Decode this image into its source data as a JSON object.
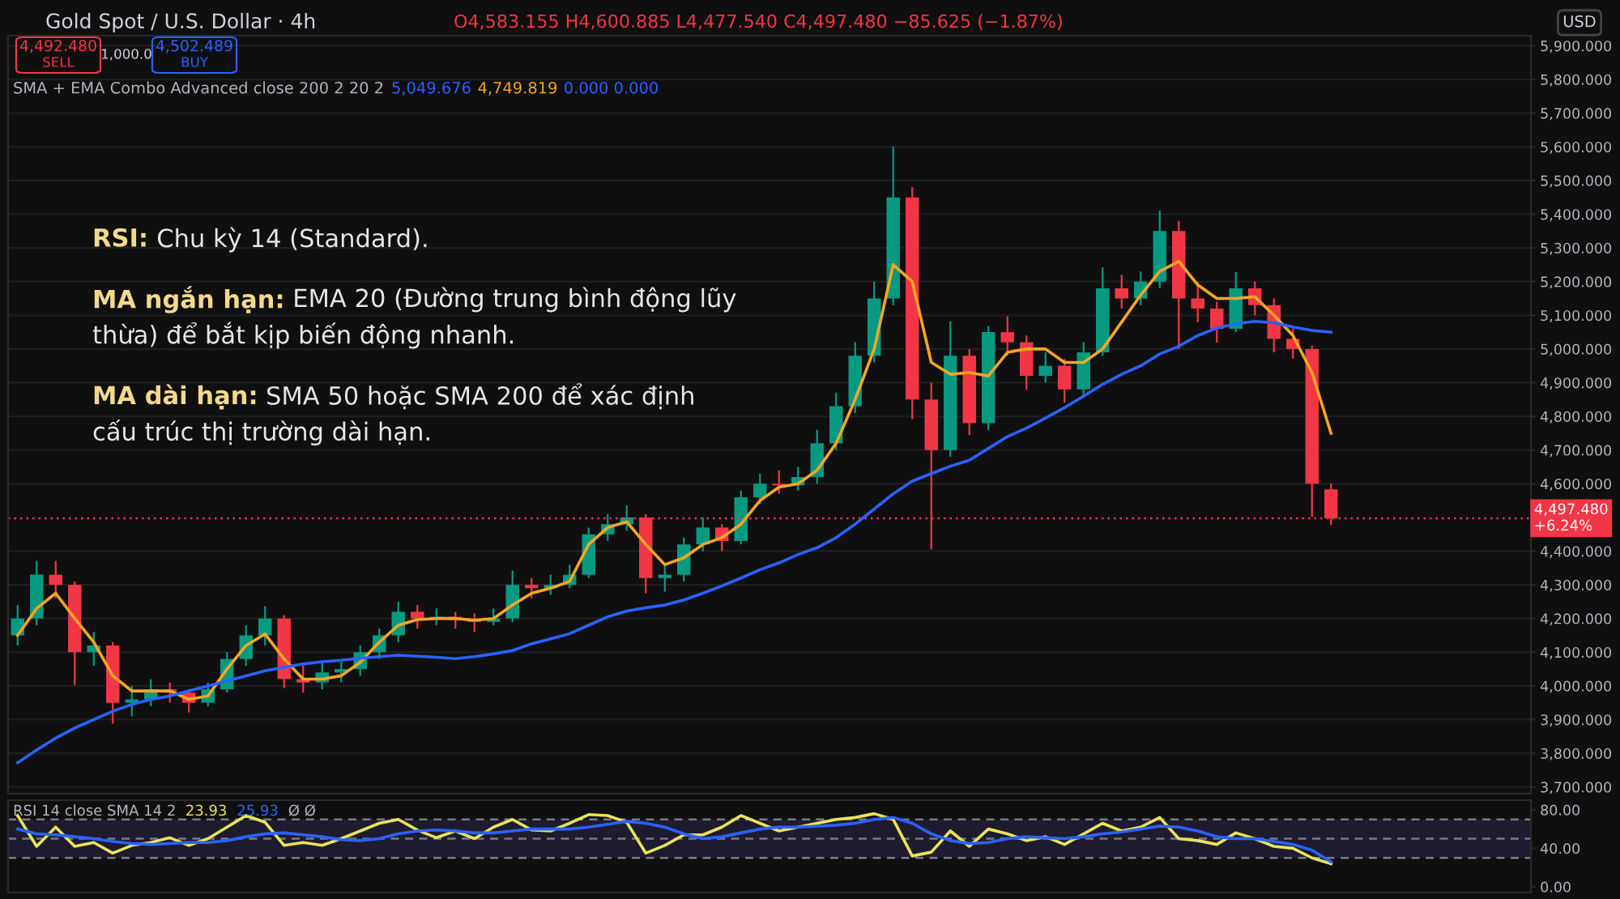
{
  "chart_data": [
    {
      "type": "candlestick",
      "title": "Gold Spot / U.S. Dollar · 4h",
      "subtitle": "O4,583.155 H4,600.885 L4,477.540 C4,497.480 −85.625 (−1.87%)",
      "annotations": [
        "4,492.480",
        "SELL",
        "1,000.0",
        "4,502.489",
        "BUY",
        "SMA + EMA Combo Advanced close 200 2 20 2",
        "5,049.676",
        "4,749.819",
        "0.000 0.000",
        "USD",
        "RSI:",
        "Chu kỳ 14 (Standard).",
        "MA ngắn hạn:",
        "EMA 20 (Đường trung bình động lũy",
        "thừa) để bắt kịp biến động nhanh.",
        "MA dài hạn:",
        "SMA 50 hoặc SMA 200 để xác định",
        "cấu trúc thị trường dài hạn."
      ],
      "categories": [
        null,
        null,
        null,
        null,
        null,
        null,
        null,
        null,
        null,
        null,
        null,
        null,
        null,
        null,
        null,
        null,
        null,
        null,
        null,
        null,
        null,
        null,
        null,
        null,
        null,
        null,
        null,
        null,
        null,
        null,
        null,
        null,
        null,
        null,
        null,
        null,
        null,
        null,
        null,
        null,
        null,
        null,
        null,
        null,
        null,
        null,
        null,
        null,
        null,
        null,
        null,
        null,
        null,
        null,
        null,
        null,
        null,
        null,
        null,
        null,
        null,
        null,
        null,
        null,
        null,
        null,
        null,
        null,
        null,
        null,
        null,
        null,
        null,
        null,
        null,
        null,
        null,
        null,
        null,
        null
      ],
      "ohlc": [
        [
          4150,
          4240,
          4120,
          4200
        ],
        [
          4200,
          4371,
          4180,
          4330
        ],
        [
          4330,
          4371,
          4260,
          4300
        ],
        [
          4300,
          4310,
          4003,
          4100
        ],
        [
          4100,
          4160,
          4060,
          4120
        ],
        [
          4120,
          4130,
          3888,
          3950
        ],
        [
          3950,
          4000,
          3910,
          3960
        ],
        [
          3960,
          4020,
          3940,
          3990
        ],
        [
          3990,
          4010,
          3950,
          3980
        ],
        [
          3980,
          3990,
          3921,
          3950
        ],
        [
          3950,
          4010,
          3940,
          3990
        ],
        [
          3990,
          4100,
          3980,
          4080
        ],
        [
          4080,
          4180,
          4060,
          4150
        ],
        [
          4150,
          4236,
          4120,
          4200
        ],
        [
          4200,
          4210,
          3994,
          4020
        ],
        [
          4020,
          4060,
          3980,
          4010
        ],
        [
          4010,
          4070,
          3990,
          4040
        ],
        [
          4040,
          4080,
          4010,
          4050
        ],
        [
          4050,
          4120,
          4030,
          4100
        ],
        [
          4100,
          4170,
          4080,
          4150
        ],
        [
          4150,
          4250,
          4130,
          4220
        ],
        [
          4220,
          4240,
          4170,
          4200
        ],
        [
          4200,
          4230,
          4180,
          4205
        ],
        [
          4205,
          4220,
          4170,
          4195
        ],
        [
          4195,
          4215,
          4160,
          4190
        ],
        [
          4190,
          4230,
          4180,
          4200
        ],
        [
          4200,
          4342,
          4190,
          4300
        ],
        [
          4300,
          4320,
          4260,
          4290
        ],
        [
          4290,
          4330,
          4270,
          4300
        ],
        [
          4300,
          4360,
          4290,
          4330
        ],
        [
          4330,
          4470,
          4320,
          4450
        ],
        [
          4450,
          4510,
          4430,
          4480
        ],
        [
          4480,
          4536,
          4460,
          4500
        ],
        [
          4500,
          4510,
          4275,
          4320
        ],
        [
          4320,
          4360,
          4280,
          4330
        ],
        [
          4330,
          4440,
          4310,
          4420
        ],
        [
          4420,
          4500,
          4400,
          4470
        ],
        [
          4470,
          4480,
          4400,
          4430
        ],
        [
          4430,
          4580,
          4420,
          4560
        ],
        [
          4560,
          4630,
          4540,
          4600
        ],
        [
          4600,
          4640,
          4570,
          4595
        ],
        [
          4595,
          4650,
          4580,
          4620
        ],
        [
          4620,
          4760,
          4600,
          4720
        ],
        [
          4720,
          4870,
          4700,
          4830
        ],
        [
          4830,
          5020,
          4810,
          4980
        ],
        [
          4980,
          5200,
          4960,
          5150
        ],
        [
          5150,
          5600,
          5130,
          5450
        ],
        [
          5450,
          5480,
          4792,
          4850
        ],
        [
          4850,
          4900,
          4405,
          4700
        ],
        [
          4700,
          5082,
          4680,
          4980
        ],
        [
          4980,
          5000,
          4744,
          4780
        ],
        [
          4780,
          5068,
          4760,
          5050
        ],
        [
          5050,
          5097,
          4980,
          5020
        ],
        [
          5020,
          5040,
          4879,
          4920
        ],
        [
          4920,
          4990,
          4900,
          4950
        ],
        [
          4950,
          4970,
          4840,
          4880
        ],
        [
          4880,
          5020,
          4860,
          4990
        ],
        [
          4990,
          5242,
          4980,
          5180
        ],
        [
          5180,
          5220,
          5120,
          5150
        ],
        [
          5150,
          5230,
          5130,
          5200
        ],
        [
          5200,
          5411,
          5180,
          5350
        ],
        [
          5350,
          5380,
          5000,
          5150
        ],
        [
          5150,
          5200,
          5080,
          5120
        ],
        [
          5120,
          5140,
          5019,
          5060
        ],
        [
          5060,
          5228,
          5050,
          5180
        ],
        [
          5180,
          5200,
          5100,
          5130
        ],
        [
          5130,
          5150,
          4990,
          5030
        ],
        [
          5030,
          5060,
          4971,
          5000
        ],
        [
          5000,
          5010,
          4502,
          4600
        ],
        [
          4583.155,
          4600.885,
          4477.54,
          4497.48
        ],
        null,
        null,
        null,
        null,
        null,
        null,
        null,
        null,
        null,
        null
      ],
      "colors": [
        "#089981",
        "#089981",
        "#f23645",
        "#f23645",
        "#089981",
        "#f23645",
        "#089981",
        "#089981",
        "#f23645",
        "#f23645",
        "#089981",
        "#089981",
        "#089981",
        "#089981",
        "#f23645",
        "#f23645",
        "#089981",
        "#089981",
        "#089981",
        "#089981",
        "#089981",
        "#f23645",
        "#089981",
        "#f23645",
        "#f23645",
        "#089981",
        "#089981",
        "#f23645",
        "#089981",
        "#089981",
        "#089981",
        "#089981",
        "#089981",
        "#f23645",
        "#089981",
        "#089981",
        "#089981",
        "#f23645",
        "#089981",
        "#089981",
        "#f23645",
        "#089981",
        "#089981",
        "#089981",
        "#089981",
        "#089981",
        "#089981",
        "#f23645",
        "#f23645",
        "#089981",
        "#f23645",
        "#089981",
        "#f23645",
        "#f23645",
        "#089981",
        "#f23645",
        "#089981",
        "#089981",
        "#f23645",
        "#089981",
        "#089981",
        "#f23645",
        "#f23645",
        "#f23645",
        "#089981",
        "#f23645",
        "#f23645",
        "#f23645",
        "#f23645",
        "#f23645",
        null,
        null,
        null,
        null,
        null,
        null,
        null,
        null,
        null,
        null
      ],
      "series": [
        {
          "type": "line",
          "color": "#f5a623",
          "values": [
            4150,
            4230,
            4275,
            4200,
            4130,
            4030,
            3985,
            3985,
            3985,
            3960,
            3970,
            4050,
            4120,
            4154,
            4080,
            4020,
            4020,
            4030,
            4070,
            4130,
            4180,
            4197,
            4200,
            4200,
            4195,
            4200,
            4240,
            4275,
            4290,
            4310,
            4420,
            4470,
            4487,
            4420,
            4360,
            4380,
            4420,
            4440,
            4480,
            4550,
            4590,
            4600,
            4640,
            4720,
            4850,
            5000,
            5250,
            5200,
            4960,
            4925,
            4930,
            4920,
            4990,
            5000,
            5000,
            4960,
            4960,
            5000,
            5080,
            5160,
            5230,
            5260,
            5190,
            5150,
            5150,
            5155,
            5100,
            5040,
            4930,
            4749.819,
            null,
            null,
            null,
            null,
            null,
            null,
            null,
            null,
            null,
            null
          ]
        },
        {
          "type": "line",
          "color": "#2962ff",
          "values": [
            3772,
            3810,
            3845,
            3875,
            3900,
            3925,
            3945,
            3960,
            3970,
            3985,
            4000,
            4015,
            4030,
            4045,
            4055,
            4065,
            4072,
            4076,
            4082,
            4087,
            4091,
            4088,
            4085,
            4081,
            4087,
            4095,
            4105,
            4125,
            4140,
            4155,
            4180,
            4205,
            4222,
            4232,
            4240,
            4255,
            4275,
            4297,
            4320,
            4345,
            4365,
            4390,
            4410,
            4440,
            4480,
            4525,
            4570,
            4608,
            4630,
            4652,
            4670,
            4705,
            4740,
            4765,
            4795,
            4826,
            4860,
            4895,
            4925,
            4950,
            4985,
            5008,
            5040,
            5062,
            5075,
            5082,
            5078,
            5065,
            5055,
            5049.676,
            null,
            null,
            null,
            null,
            null,
            null,
            null,
            null,
            null,
            null
          ]
        }
      ],
      "ylim": [
        3680,
        5930
      ],
      "yticks": [
        {
          "value": 3700,
          "label": "3,700.000"
        },
        {
          "value": 3800,
          "label": "3,800.000"
        },
        {
          "value": 3900,
          "label": "3,900.000"
        },
        {
          "value": 4000,
          "label": "4,000.000"
        },
        {
          "value": 4100,
          "label": "4,100.000"
        },
        {
          "value": 4200,
          "label": "4,200.000"
        },
        {
          "value": 4300,
          "label": "4,300.000"
        },
        {
          "value": 4400,
          "label": "4,400.000"
        },
        {
          "value": 4600,
          "label": "4,600.000"
        },
        {
          "value": 4700,
          "label": "4,700.000"
        },
        {
          "value": 4800,
          "label": "4,800.000"
        },
        {
          "value": 4900,
          "label": "4,900.000"
        },
        {
          "value": 5000,
          "label": "5,000.000"
        },
        {
          "value": 5100,
          "label": "5,100.000"
        },
        {
          "value": 5200,
          "label": "5,200.000"
        },
        {
          "value": 5300,
          "label": "5,300.000"
        },
        {
          "value": 5400,
          "label": "5,400.000"
        },
        {
          "value": 5500,
          "label": "5,500.000"
        },
        {
          "value": 5600,
          "label": "5,600.000"
        },
        {
          "value": 5700,
          "label": "5,700.000"
        },
        {
          "value": 5800,
          "label": "5,800.000"
        },
        {
          "value": 5900,
          "label": "5,900.000"
        }
      ],
      "ref_lines": [
        {
          "axis": "y",
          "value": 4497.48,
          "label": "4,497.480\n+6.24%",
          "color": "#f23645",
          "line_style": "dotted"
        }
      ],
      "grid": "y",
      "tick_labels": "y"
    },
    {
      "type": "line",
      "title": "RSI 14 close SMA 14 2",
      "annotations": [
        "23.93",
        "25.93",
        "Ø Ø"
      ],
      "categories": [
        null,
        null,
        null,
        null,
        null,
        null,
        null,
        null,
        null,
        null,
        null,
        null,
        null,
        null,
        null,
        null,
        null,
        null,
        null,
        null,
        null,
        null,
        null,
        null,
        null,
        null,
        null,
        null,
        null,
        null,
        null,
        null,
        null,
        null,
        null,
        null,
        null,
        null,
        null,
        null,
        null,
        null,
        null,
        null,
        null,
        null,
        null,
        null,
        null,
        null,
        null,
        null,
        null,
        null,
        null,
        null,
        null,
        null,
        null,
        null,
        null,
        null,
        null,
        null,
        null,
        null,
        null,
        null,
        null,
        null,
        null,
        null,
        null,
        null,
        null,
        null,
        null,
        null,
        null,
        null
      ],
      "series": [
        {
          "color": "#e8e35a",
          "values": [
            74,
            42,
            62,
            42,
            46,
            35,
            43,
            46,
            51,
            43,
            50,
            62,
            74,
            67,
            43,
            46,
            43,
            50,
            58,
            66,
            70,
            59,
            51,
            58,
            50,
            62,
            70,
            59,
            58,
            66,
            75,
            74,
            67,
            35,
            43,
            54,
            54,
            62,
            74,
            66,
            58,
            62,
            66,
            70,
            72,
            76,
            70,
            32,
            36,
            58,
            42,
            60,
            55,
            48,
            52,
            44,
            55,
            66,
            58,
            62,
            72,
            50,
            48,
            44,
            56,
            50,
            42,
            40,
            30,
            23.93,
            null,
            null,
            null,
            null,
            null,
            null,
            null,
            null,
            null,
            null
          ]
        },
        {
          "color": "#2962ff",
          "values": [
            60,
            55,
            54,
            52,
            50,
            47,
            45,
            44,
            45,
            46,
            46,
            48,
            52,
            55,
            56,
            54,
            52,
            49,
            48,
            50,
            55,
            58,
            59,
            58,
            56,
            56,
            58,
            60,
            60,
            60,
            62,
            65,
            68,
            66,
            62,
            55,
            50,
            52,
            56,
            60,
            62,
            62,
            63,
            64,
            66,
            70,
            72,
            66,
            55,
            48,
            45,
            46,
            50,
            52,
            51,
            50,
            52,
            55,
            57,
            60,
            63,
            62,
            58,
            52,
            50,
            50,
            47,
            44,
            38,
            25.93,
            null,
            null,
            null,
            null,
            null,
            null,
            null,
            null,
            null,
            null
          ]
        }
      ],
      "ylim": [
        -6,
        90
      ],
      "yticks": [
        {
          "value": 0,
          "label": "0.00"
        },
        {
          "value": 40,
          "label": "40.00"
        },
        {
          "value": 80,
          "label": "80.00"
        }
      ],
      "ref_lines": [
        {
          "axis": "y",
          "value": 70,
          "color": "#787b86",
          "line_style": "dashed"
        },
        {
          "axis": "y",
          "value": 50,
          "color": "#787b86",
          "line_style": "dashed"
        },
        {
          "axis": "y",
          "value": 30,
          "color": "#787b86",
          "line_style": "dashed"
        }
      ],
      "bands": [
        {
          "axis": "y",
          "from": 30,
          "to": 70,
          "color": "#1f1b2e"
        }
      ],
      "tick_labels": "y"
    }
  ]
}
